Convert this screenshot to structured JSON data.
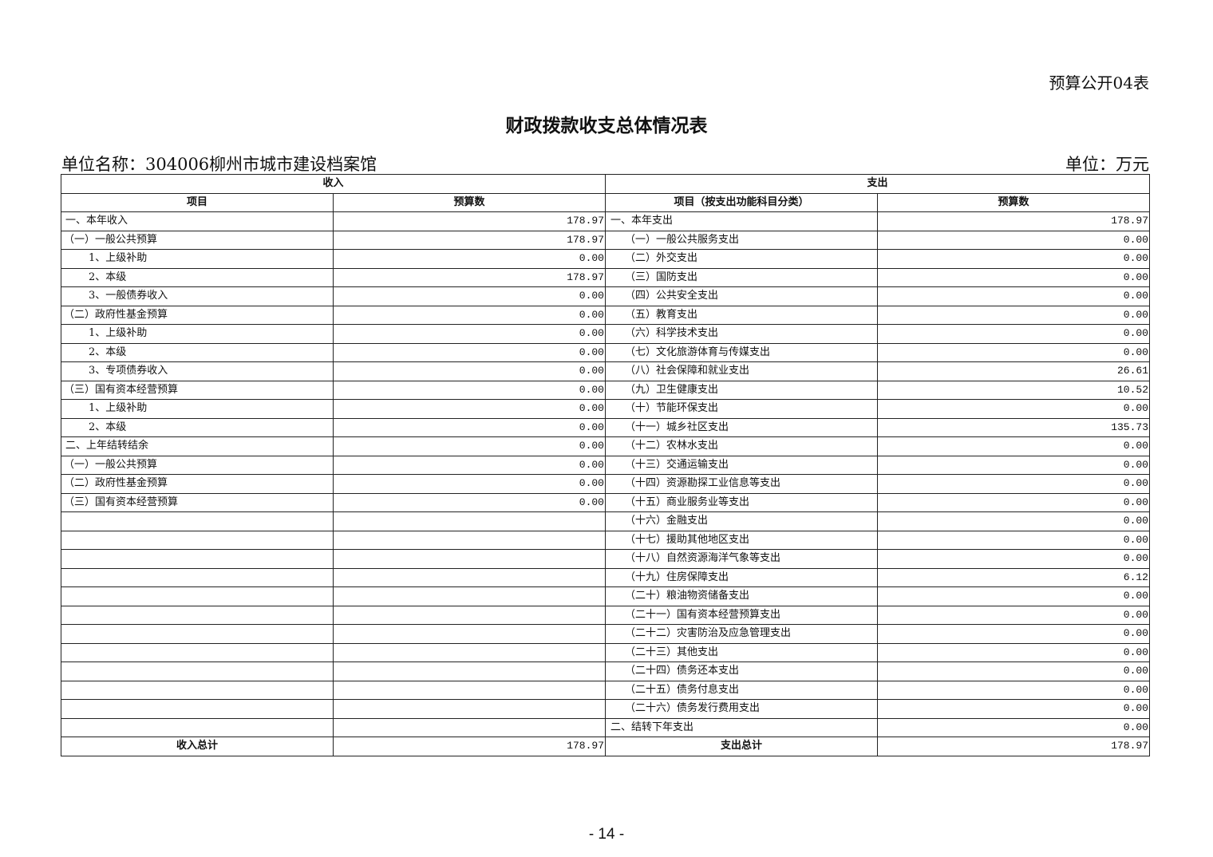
{
  "table_code": "预算公开04表",
  "title": "财政拨款收支总体情况表",
  "unit_name": "单位名称：304006柳州市城市建设档案馆",
  "unit": "单位：万元",
  "headers": {
    "income": "收入",
    "expense": "支出",
    "item": "项目",
    "budget": "预算数",
    "expense_item": "项目（按支出功能科目分类）"
  },
  "income_rows": [
    {
      "label": "一、本年收入",
      "value": "178.97",
      "level": 0
    },
    {
      "label": "（一）一般公共预算",
      "value": "178.97",
      "level": 1
    },
    {
      "label": "1、上级补助",
      "value": "0.00",
      "level": 2
    },
    {
      "label": "2、本级",
      "value": "178.97",
      "level": 2
    },
    {
      "label": "3、一般债券收入",
      "value": "0.00",
      "level": 2
    },
    {
      "label": "（二）政府性基金预算",
      "value": "0.00",
      "level": 1
    },
    {
      "label": "1、上级补助",
      "value": "0.00",
      "level": 2
    },
    {
      "label": "2、本级",
      "value": "0.00",
      "level": 2
    },
    {
      "label": "3、专项债券收入",
      "value": "0.00",
      "level": 2
    },
    {
      "label": "（三）国有资本经营预算",
      "value": "0.00",
      "level": 1
    },
    {
      "label": "1、上级补助",
      "value": "0.00",
      "level": 2
    },
    {
      "label": "2、本级",
      "value": "0.00",
      "level": 2
    },
    {
      "label": "二、上年结转结余",
      "value": "0.00",
      "level": 0
    },
    {
      "label": "（一）一般公共预算",
      "value": "0.00",
      "level": 1
    },
    {
      "label": "（二）政府性基金预算",
      "value": "0.00",
      "level": 1
    },
    {
      "label": "（三）国有资本经营预算",
      "value": "0.00",
      "level": 1
    }
  ],
  "expense_rows": [
    {
      "label": "一、本年支出",
      "value": "178.97",
      "level": 0
    },
    {
      "label": "（一）一般公共服务支出",
      "value": "0.00",
      "level": 1
    },
    {
      "label": "（二）外交支出",
      "value": "0.00",
      "level": 1
    },
    {
      "label": "（三）国防支出",
      "value": "0.00",
      "level": 1
    },
    {
      "label": "（四）公共安全支出",
      "value": "0.00",
      "level": 1
    },
    {
      "label": "（五）教育支出",
      "value": "0.00",
      "level": 1
    },
    {
      "label": "（六）科学技术支出",
      "value": "0.00",
      "level": 1
    },
    {
      "label": "（七）文化旅游体育与传媒支出",
      "value": "0.00",
      "level": 1
    },
    {
      "label": "（八）社会保障和就业支出",
      "value": "26.61",
      "level": 1
    },
    {
      "label": "（九）卫生健康支出",
      "value": "10.52",
      "level": 1
    },
    {
      "label": "（十）节能环保支出",
      "value": "0.00",
      "level": 1
    },
    {
      "label": "（十一）城乡社区支出",
      "value": "135.73",
      "level": 1
    },
    {
      "label": "（十二）农林水支出",
      "value": "0.00",
      "level": 1
    },
    {
      "label": "（十三）交通运输支出",
      "value": "0.00",
      "level": 1
    },
    {
      "label": "（十四）资源勘探工业信息等支出",
      "value": "0.00",
      "level": 1
    },
    {
      "label": "（十五）商业服务业等支出",
      "value": "0.00",
      "level": 1
    },
    {
      "label": "（十六）金融支出",
      "value": "0.00",
      "level": 1
    },
    {
      "label": "（十七）援助其他地区支出",
      "value": "0.00",
      "level": 1
    },
    {
      "label": "（十八）自然资源海洋气象等支出",
      "value": "0.00",
      "level": 1
    },
    {
      "label": "（十九）住房保障支出",
      "value": "6.12",
      "level": 1
    },
    {
      "label": "（二十）粮油物资储备支出",
      "value": "0.00",
      "level": 1
    },
    {
      "label": "（二十一）国有资本经营预算支出",
      "value": "0.00",
      "level": 1
    },
    {
      "label": "（二十二）灾害防治及应急管理支出",
      "value": "0.00",
      "level": 1
    },
    {
      "label": "（二十三）其他支出",
      "value": "0.00",
      "level": 1
    },
    {
      "label": "（二十四）债务还本支出",
      "value": "0.00",
      "level": 1
    },
    {
      "label": "（二十五）债务付息支出",
      "value": "0.00",
      "level": 1
    },
    {
      "label": "（二十六）债务发行费用支出",
      "value": "0.00",
      "level": 1
    },
    {
      "label": "二、结转下年支出",
      "value": "0.00",
      "level": 0
    }
  ],
  "totals": {
    "income_label": "收入总计",
    "income_value": "178.97",
    "expense_label": "支出总计",
    "expense_value": "178.97"
  },
  "page_number": "- 14 -"
}
